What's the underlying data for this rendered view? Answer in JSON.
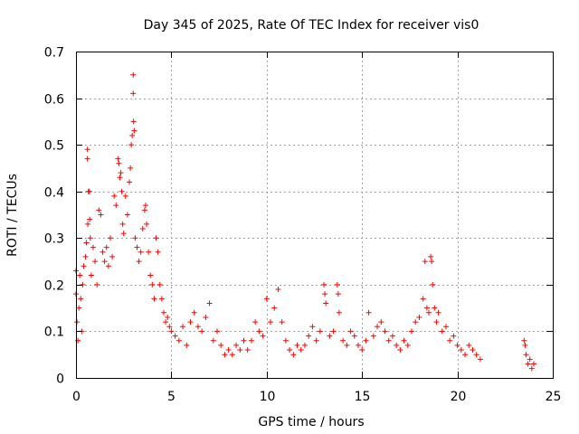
{
  "chart_data": {
    "type": "scatter",
    "title": "Day 345 of 2025, Rate Of TEC Index for receiver vis0",
    "xlabel": "GPS time / hours",
    "ylabel": "ROTI / TECUs",
    "xlim": [
      0,
      25
    ],
    "ylim": [
      0,
      0.7
    ],
    "xticks": [
      0,
      5,
      10,
      15,
      20,
      25
    ],
    "yticks": [
      0,
      0.1,
      0.2,
      0.3,
      0.4,
      0.5,
      0.6,
      0.7
    ],
    "xtick_labels": [
      "0",
      "5",
      "10",
      "15",
      "20",
      "25"
    ],
    "ytick_labels": [
      "0",
      "0.1",
      "0.2",
      "0.3",
      "0.4",
      "0.5",
      "0.6",
      "0.7"
    ],
    "grid": true,
    "legend": "none",
    "marker": "plus",
    "color": "#ff0000",
    "series": [
      {
        "points": [
          [
            0.0,
            0.23
          ],
          [
            0.0,
            0.18
          ],
          [
            0.05,
            0.12
          ],
          [
            0.1,
            0.08
          ],
          [
            0.15,
            0.15
          ],
          [
            0.2,
            0.22
          ],
          [
            0.25,
            0.17
          ],
          [
            0.3,
            0.1
          ],
          [
            0.35,
            0.2
          ],
          [
            0.4,
            0.24
          ],
          [
            0.5,
            0.26
          ],
          [
            0.55,
            0.29
          ],
          [
            0.6,
            0.49
          ],
          [
            0.6,
            0.47
          ],
          [
            0.62,
            0.33
          ],
          [
            0.65,
            0.4
          ],
          [
            0.7,
            0.4
          ],
          [
            0.72,
            0.34
          ],
          [
            0.75,
            0.3
          ],
          [
            0.8,
            0.22
          ],
          [
            0.9,
            0.28
          ],
          [
            1.0,
            0.25
          ],
          [
            1.1,
            0.2
          ],
          [
            1.2,
            0.36
          ],
          [
            1.3,
            0.35
          ],
          [
            1.4,
            0.27
          ],
          [
            1.5,
            0.25
          ],
          [
            1.6,
            0.28
          ],
          [
            1.7,
            0.24
          ],
          [
            1.8,
            0.3
          ],
          [
            1.9,
            0.26
          ],
          [
            2.0,
            0.39
          ],
          [
            2.1,
            0.37
          ],
          [
            2.2,
            0.47
          ],
          [
            2.25,
            0.46
          ],
          [
            2.3,
            0.43
          ],
          [
            2.35,
            0.44
          ],
          [
            2.4,
            0.4
          ],
          [
            2.45,
            0.33
          ],
          [
            2.5,
            0.31
          ],
          [
            2.6,
            0.39
          ],
          [
            2.7,
            0.35
          ],
          [
            2.8,
            0.42
          ],
          [
            2.85,
            0.45
          ],
          [
            2.9,
            0.5
          ],
          [
            2.95,
            0.52
          ],
          [
            3.0,
            0.65
          ],
          [
            3.0,
            0.61
          ],
          [
            3.02,
            0.55
          ],
          [
            3.05,
            0.53
          ],
          [
            3.1,
            0.3
          ],
          [
            3.2,
            0.28
          ],
          [
            3.3,
            0.25
          ],
          [
            3.4,
            0.27
          ],
          [
            3.5,
            0.32
          ],
          [
            3.6,
            0.36
          ],
          [
            3.65,
            0.37
          ],
          [
            3.7,
            0.33
          ],
          [
            3.8,
            0.27
          ],
          [
            3.9,
            0.22
          ],
          [
            4.0,
            0.2
          ],
          [
            4.1,
            0.17
          ],
          [
            4.2,
            0.3
          ],
          [
            4.3,
            0.27
          ],
          [
            4.4,
            0.2
          ],
          [
            4.5,
            0.17
          ],
          [
            4.6,
            0.14
          ],
          [
            4.7,
            0.12
          ],
          [
            4.8,
            0.13
          ],
          [
            4.9,
            0.11
          ],
          [
            5.0,
            0.1
          ],
          [
            5.2,
            0.09
          ],
          [
            5.4,
            0.08
          ],
          [
            5.6,
            0.11
          ],
          [
            5.8,
            0.07
          ],
          [
            6.0,
            0.12
          ],
          [
            6.2,
            0.14
          ],
          [
            6.4,
            0.11
          ],
          [
            6.6,
            0.1
          ],
          [
            6.8,
            0.13
          ],
          [
            7.0,
            0.16
          ],
          [
            7.2,
            0.08
          ],
          [
            7.4,
            0.1
          ],
          [
            7.6,
            0.07
          ],
          [
            7.8,
            0.05
          ],
          [
            8.0,
            0.06
          ],
          [
            8.2,
            0.05
          ],
          [
            8.4,
            0.07
          ],
          [
            8.6,
            0.06
          ],
          [
            8.8,
            0.08
          ],
          [
            9.0,
            0.06
          ],
          [
            9.2,
            0.08
          ],
          [
            9.4,
            0.12
          ],
          [
            9.6,
            0.1
          ],
          [
            9.8,
            0.09
          ],
          [
            10.0,
            0.17
          ],
          [
            10.2,
            0.12
          ],
          [
            10.4,
            0.15
          ],
          [
            10.6,
            0.19
          ],
          [
            10.8,
            0.12
          ],
          [
            11.0,
            0.08
          ],
          [
            11.2,
            0.06
          ],
          [
            11.4,
            0.05
          ],
          [
            11.6,
            0.07
          ],
          [
            11.8,
            0.06
          ],
          [
            12.0,
            0.07
          ],
          [
            12.2,
            0.09
          ],
          [
            12.4,
            0.11
          ],
          [
            12.6,
            0.08
          ],
          [
            12.8,
            0.1
          ],
          [
            13.0,
            0.2
          ],
          [
            13.05,
            0.18
          ],
          [
            13.1,
            0.16
          ],
          [
            13.3,
            0.09
          ],
          [
            13.5,
            0.1
          ],
          [
            13.7,
            0.2
          ],
          [
            13.75,
            0.18
          ],
          [
            13.8,
            0.14
          ],
          [
            14.0,
            0.08
          ],
          [
            14.2,
            0.07
          ],
          [
            14.4,
            0.1
          ],
          [
            14.6,
            0.09
          ],
          [
            14.8,
            0.07
          ],
          [
            15.0,
            0.06
          ],
          [
            15.2,
            0.08
          ],
          [
            15.35,
            0.14
          ],
          [
            15.6,
            0.09
          ],
          [
            15.8,
            0.11
          ],
          [
            16.0,
            0.12
          ],
          [
            16.2,
            0.1
          ],
          [
            16.4,
            0.08
          ],
          [
            16.6,
            0.09
          ],
          [
            16.8,
            0.07
          ],
          [
            17.0,
            0.06
          ],
          [
            17.2,
            0.08
          ],
          [
            17.4,
            0.07
          ],
          [
            17.6,
            0.1
          ],
          [
            17.8,
            0.12
          ],
          [
            18.0,
            0.13
          ],
          [
            18.2,
            0.17
          ],
          [
            18.3,
            0.25
          ],
          [
            18.4,
            0.15
          ],
          [
            18.5,
            0.14
          ],
          [
            18.6,
            0.26
          ],
          [
            18.65,
            0.25
          ],
          [
            18.7,
            0.2
          ],
          [
            18.8,
            0.15
          ],
          [
            18.9,
            0.12
          ],
          [
            19.0,
            0.14
          ],
          [
            19.2,
            0.1
          ],
          [
            19.4,
            0.11
          ],
          [
            19.6,
            0.08
          ],
          [
            19.8,
            0.09
          ],
          [
            20.0,
            0.07
          ],
          [
            20.2,
            0.06
          ],
          [
            20.4,
            0.05
          ],
          [
            20.6,
            0.07
          ],
          [
            20.8,
            0.06
          ],
          [
            21.0,
            0.05
          ],
          [
            21.2,
            0.04
          ],
          [
            23.5,
            0.08
          ],
          [
            23.55,
            0.07
          ],
          [
            23.6,
            0.05
          ],
          [
            23.7,
            0.03
          ],
          [
            23.8,
            0.04
          ],
          [
            23.9,
            0.02
          ],
          [
            24.0,
            0.03
          ]
        ]
      }
    ]
  }
}
